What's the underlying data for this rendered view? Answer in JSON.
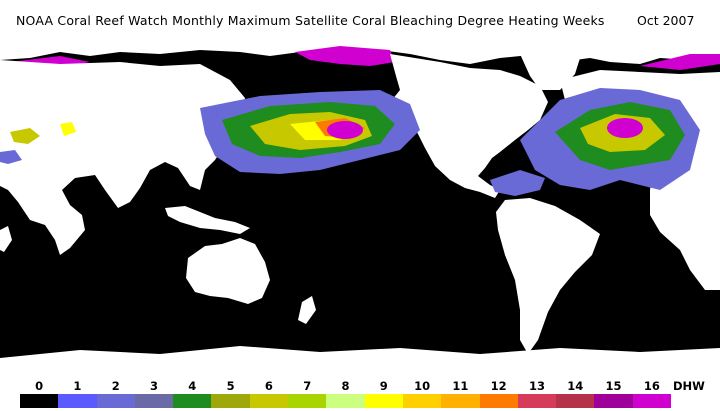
{
  "title": "NOAA Coral Reef Watch Monthly Maximum Satellite Coral Bleaching Degree Heating Weeks",
  "date": "Oct 2007",
  "legend": {
    "unit": "DHW",
    "levels": [
      {
        "label": "0",
        "color": "#000000"
      },
      {
        "label": "1",
        "color": "#5a5aff"
      },
      {
        "label": "2",
        "color": "#6a6ad6"
      },
      {
        "label": "3",
        "color": "#6a6aa6"
      },
      {
        "label": "4",
        "color": "#1e8c1e"
      },
      {
        "label": "5",
        "color": "#9ea80a"
      },
      {
        "label": "6",
        "color": "#c8c800"
      },
      {
        "label": "7",
        "color": "#a8d400"
      },
      {
        "label": "8",
        "color": "#ccff80"
      },
      {
        "label": "9",
        "color": "#ffff00"
      },
      {
        "label": "10",
        "color": "#ffd000"
      },
      {
        "label": "11",
        "color": "#ffb000"
      },
      {
        "label": "12",
        "color": "#ff7a00"
      },
      {
        "label": "13",
        "color": "#d43c5a"
      },
      {
        "label": "14",
        "color": "#b4324a"
      },
      {
        "label": "15",
        "color": "#a0009a"
      },
      {
        "label": "16",
        "color": "#d000d0"
      }
    ]
  },
  "colors": {
    "ocean": "#000000",
    "land": "#ffffff"
  }
}
